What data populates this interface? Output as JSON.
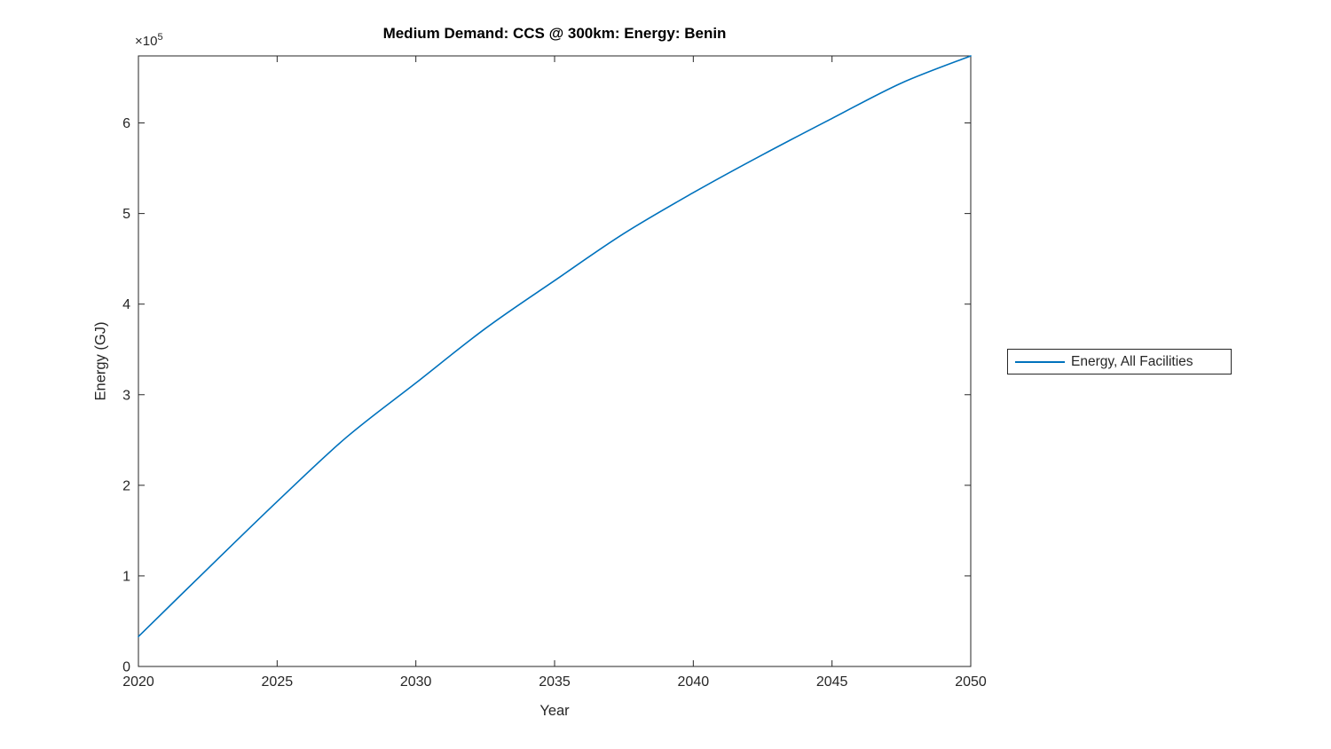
{
  "chart_data": {
    "type": "line",
    "title": "Medium Demand: CCS @ 300km: Energy: Benin",
    "xlabel": "Year",
    "ylabel": "Energy (GJ)",
    "y_multiplier": "×10",
    "y_multiplier_exp": "5",
    "x": [
      2020,
      2022.5,
      2025,
      2027.5,
      2030,
      2032.5,
      2035,
      2037.5,
      2040,
      2042.5,
      2045,
      2047.5,
      2050
    ],
    "series": [
      {
        "name": "Energy, All Facilities",
        "color": "#0072BD",
        "values": [
          33000,
          108000,
          182000,
          253000,
          313000,
          373000,
          426000,
          478000,
          523000,
          565000,
          605000,
          644000,
          674000
        ]
      }
    ],
    "xlim": [
      2020,
      2050
    ],
    "ylim": [
      0,
      674000
    ],
    "x_ticks": [
      2020,
      2025,
      2030,
      2035,
      2040,
      2045,
      2050
    ],
    "x_tick_labels": [
      "2020",
      "2025",
      "2030",
      "2035",
      "2040",
      "2045",
      "2050"
    ],
    "y_ticks": [
      0,
      100000,
      200000,
      300000,
      400000,
      500000,
      600000
    ],
    "y_tick_labels": [
      "0",
      "1",
      "2",
      "3",
      "4",
      "5",
      "6"
    ],
    "grid": false,
    "legend_position": "right-outside",
    "legend_entries": [
      "Energy, All Facilities"
    ],
    "axis_color": "#262626",
    "background_color": "#ffffff"
  }
}
